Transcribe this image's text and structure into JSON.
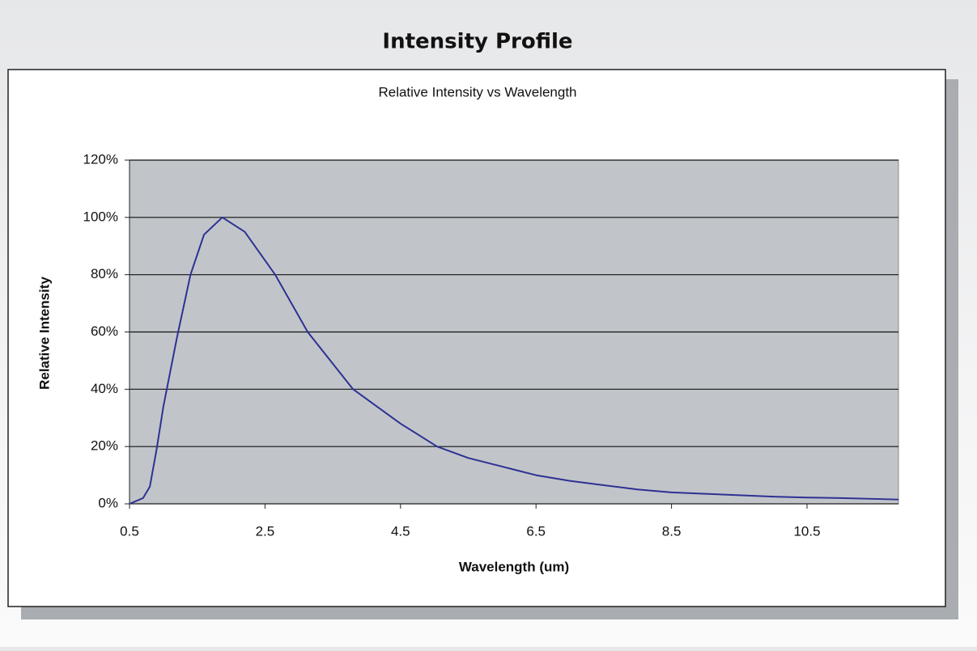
{
  "page_title": "Intensity Profile",
  "chart_data": {
    "type": "line",
    "title": "Relative Intensity vs Wavelength",
    "x_label": "Wavelength (um)",
    "y_label": "Relative Intensity",
    "x": [
      0.5,
      0.7,
      0.8,
      0.9,
      1.0,
      1.05,
      1.2,
      1.4,
      1.6,
      1.87,
      2.2,
      2.65,
      3.13,
      3.8,
      4.5,
      5.04,
      5.5,
      6.0,
      6.5,
      7.0,
      7.5,
      8.0,
      8.5,
      9.0,
      9.5,
      10.0,
      10.5,
      11.0,
      11.85
    ],
    "series": [
      {
        "name": "Relative Intensity",
        "color": "#2e3192",
        "values": [
          0,
          2,
          6,
          19,
          34,
          40,
          58,
          80,
          94,
          100,
          95,
          80,
          60,
          40,
          28,
          20,
          16,
          13,
          10,
          8,
          6.5,
          5,
          4,
          3.5,
          3,
          2.5,
          2.2,
          2,
          1.5
        ]
      }
    ],
    "xlim": [
      0.5,
      11.85
    ],
    "xticks": [
      0.5,
      2.5,
      4.5,
      6.5,
      8.5,
      10.5
    ],
    "ylim": [
      0,
      120
    ],
    "yticks": [
      {
        "value": 0,
        "label": "0%"
      },
      {
        "value": 20,
        "label": "20%"
      },
      {
        "value": 40,
        "label": "40%"
      },
      {
        "value": 60,
        "label": "60%"
      },
      {
        "value": 80,
        "label": "80%"
      },
      {
        "value": 100,
        "label": "100%"
      },
      {
        "value": 120,
        "label": "120%"
      }
    ],
    "grid": true
  }
}
